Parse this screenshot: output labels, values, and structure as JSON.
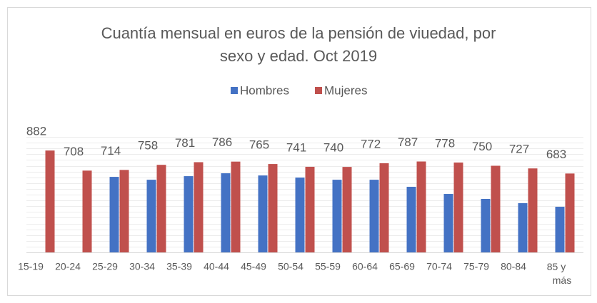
{
  "chart_data": {
    "type": "bar",
    "title": "Cuantía mensual en euros de la pensión de viuedad, por sexo y edad. Oct 2019",
    "categories": [
      "15-19",
      "20-24",
      "25-29",
      "30-34",
      "35-39",
      "40-44",
      "45-49",
      "50-54",
      "55-59",
      "60-64",
      "65-69",
      "70-74",
      "75-79",
      "80-84",
      "85 y más"
    ],
    "series": [
      {
        "name": "Hombres",
        "color": "#4472c4",
        "values": [
          null,
          null,
          654,
          629,
          660,
          685,
          666,
          648,
          629,
          629,
          568,
          506,
          463,
          426,
          395
        ],
        "show_labels": false
      },
      {
        "name": "Mujeres",
        "color": "#c0504d",
        "values": [
          882,
          708,
          714,
          758,
          781,
          786,
          765,
          741,
          740,
          772,
          787,
          778,
          750,
          727,
          683
        ],
        "show_labels": true
      }
    ],
    "ylim": [
      0,
      1000
    ],
    "yticks": [
      0,
      50,
      100,
      150,
      200,
      250,
      300,
      350,
      400,
      450,
      500,
      550,
      600,
      650,
      700,
      750,
      800,
      850,
      900,
      950,
      1000
    ],
    "show_ytick_labels": false,
    "grid": true,
    "legend": "top"
  }
}
